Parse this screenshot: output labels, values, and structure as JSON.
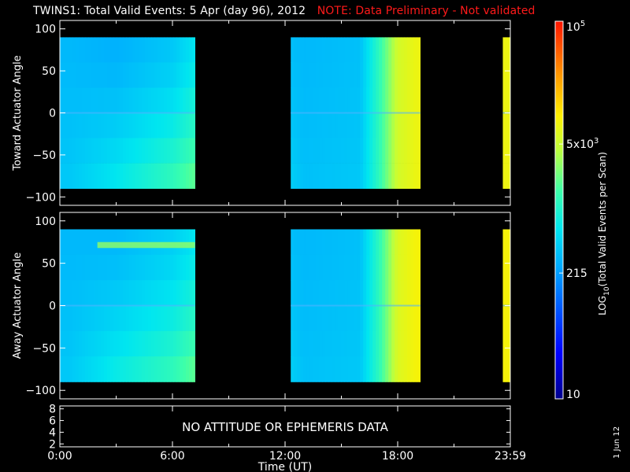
{
  "header": {
    "title": "TWINS1: Total Valid Events:  5 Apr (day  96), 2012",
    "note": "NOTE: Data Preliminary - Not validated"
  },
  "chart_data": [
    {
      "type": "heatmap",
      "panel": "top",
      "ylabel": "Toward Actuator Angle",
      "ylim": [
        -110,
        110
      ],
      "yticks": [
        "100",
        "50",
        "0",
        "−50",
        "−100"
      ],
      "yticks_values": [
        100,
        50,
        0,
        -50,
        -100
      ],
      "xlim_hours": [
        0,
        24
      ],
      "angle_range": [
        -90,
        90
      ],
      "data_intervals_hours": [
        [
          0,
          7.2
        ],
        [
          12.3,
          19.2
        ],
        [
          23.6,
          24
        ]
      ],
      "log_counts_by_time": [
        {
          "t": 0.5,
          "lo": 2.5,
          "hi": 2.6
        },
        {
          "t": 3,
          "lo": 2.45,
          "hi": 2.8
        },
        {
          "t": 6,
          "lo": 2.6,
          "hi": 3.1
        },
        {
          "t": 7.2,
          "lo": 2.8,
          "hi": 3.3
        },
        {
          "t": 13,
          "lo": 2.5,
          "hi": 2.55
        },
        {
          "t": 16,
          "lo": 2.55,
          "hi": 2.6
        },
        {
          "t": 17,
          "lo": 3.1,
          "hi": 3.1
        },
        {
          "t": 18,
          "lo": 3.75,
          "hi": 3.75
        },
        {
          "t": 19,
          "lo": 3.9,
          "hi": 3.9
        }
      ]
    },
    {
      "type": "heatmap",
      "panel": "middle",
      "ylabel": "Away Actuator Angle",
      "ylim": [
        -110,
        110
      ],
      "yticks": [
        "100",
        "50",
        "0",
        "−50",
        "−100"
      ],
      "yticks_values": [
        100,
        50,
        0,
        -50,
        -100
      ],
      "xlim_hours": [
        0,
        24
      ],
      "angle_range": [
        -90,
        90
      ],
      "data_intervals_hours": [
        [
          0,
          7.2
        ],
        [
          12.3,
          19.2
        ],
        [
          23.6,
          24
        ]
      ],
      "band_feature": {
        "time_hours": [
          2,
          7.2
        ],
        "angle": [
          68,
          75
        ],
        "log_counts": 3.5
      },
      "log_counts_by_time": [
        {
          "t": 0.5,
          "lo": 2.5,
          "hi": 2.6
        },
        {
          "t": 3,
          "lo": 2.5,
          "hi": 2.85
        },
        {
          "t": 6,
          "lo": 2.65,
          "hi": 3.1
        },
        {
          "t": 7.2,
          "lo": 2.8,
          "hi": 3.3
        },
        {
          "t": 13,
          "lo": 2.5,
          "hi": 2.55
        },
        {
          "t": 16,
          "lo": 2.55,
          "hi": 2.6
        },
        {
          "t": 17,
          "lo": 3.1,
          "hi": 3.1
        },
        {
          "t": 18,
          "lo": 3.8,
          "hi": 3.8
        },
        {
          "t": 19,
          "lo": 3.95,
          "hi": 3.95
        }
      ]
    },
    {
      "type": "line",
      "panel": "bottom",
      "yticks": [
        "8",
        "6",
        "4",
        "2"
      ],
      "yticks_values": [
        8,
        6,
        4,
        2
      ],
      "ylim": [
        1.5,
        8.5
      ],
      "message": "NO ATTITUDE OR EPHEMERIS DATA",
      "xticks": [
        "0:00",
        "6:00",
        "12:00",
        "18:00",
        "23:59"
      ],
      "xticks_hours": [
        0,
        6,
        12,
        18,
        24
      ],
      "xlabel": "Time (UT)"
    }
  ],
  "colorbar": {
    "label": "LOG10(Total Valid Events per Scan)",
    "label_main": "LOG",
    "label_sub": "10",
    "label_rest": "(Total Valid Events per Scan)",
    "range": [
      10,
      100000
    ],
    "ticks": [
      {
        "text": "10",
        "value": 10
      },
      {
        "text": "215",
        "value": 215
      },
      {
        "text": "5x10",
        "sup": "3",
        "value": 5000
      },
      {
        "text": "10",
        "sup": "5",
        "value": 100000
      }
    ]
  },
  "footer": {
    "date_stamp": "1 Jun 12"
  }
}
